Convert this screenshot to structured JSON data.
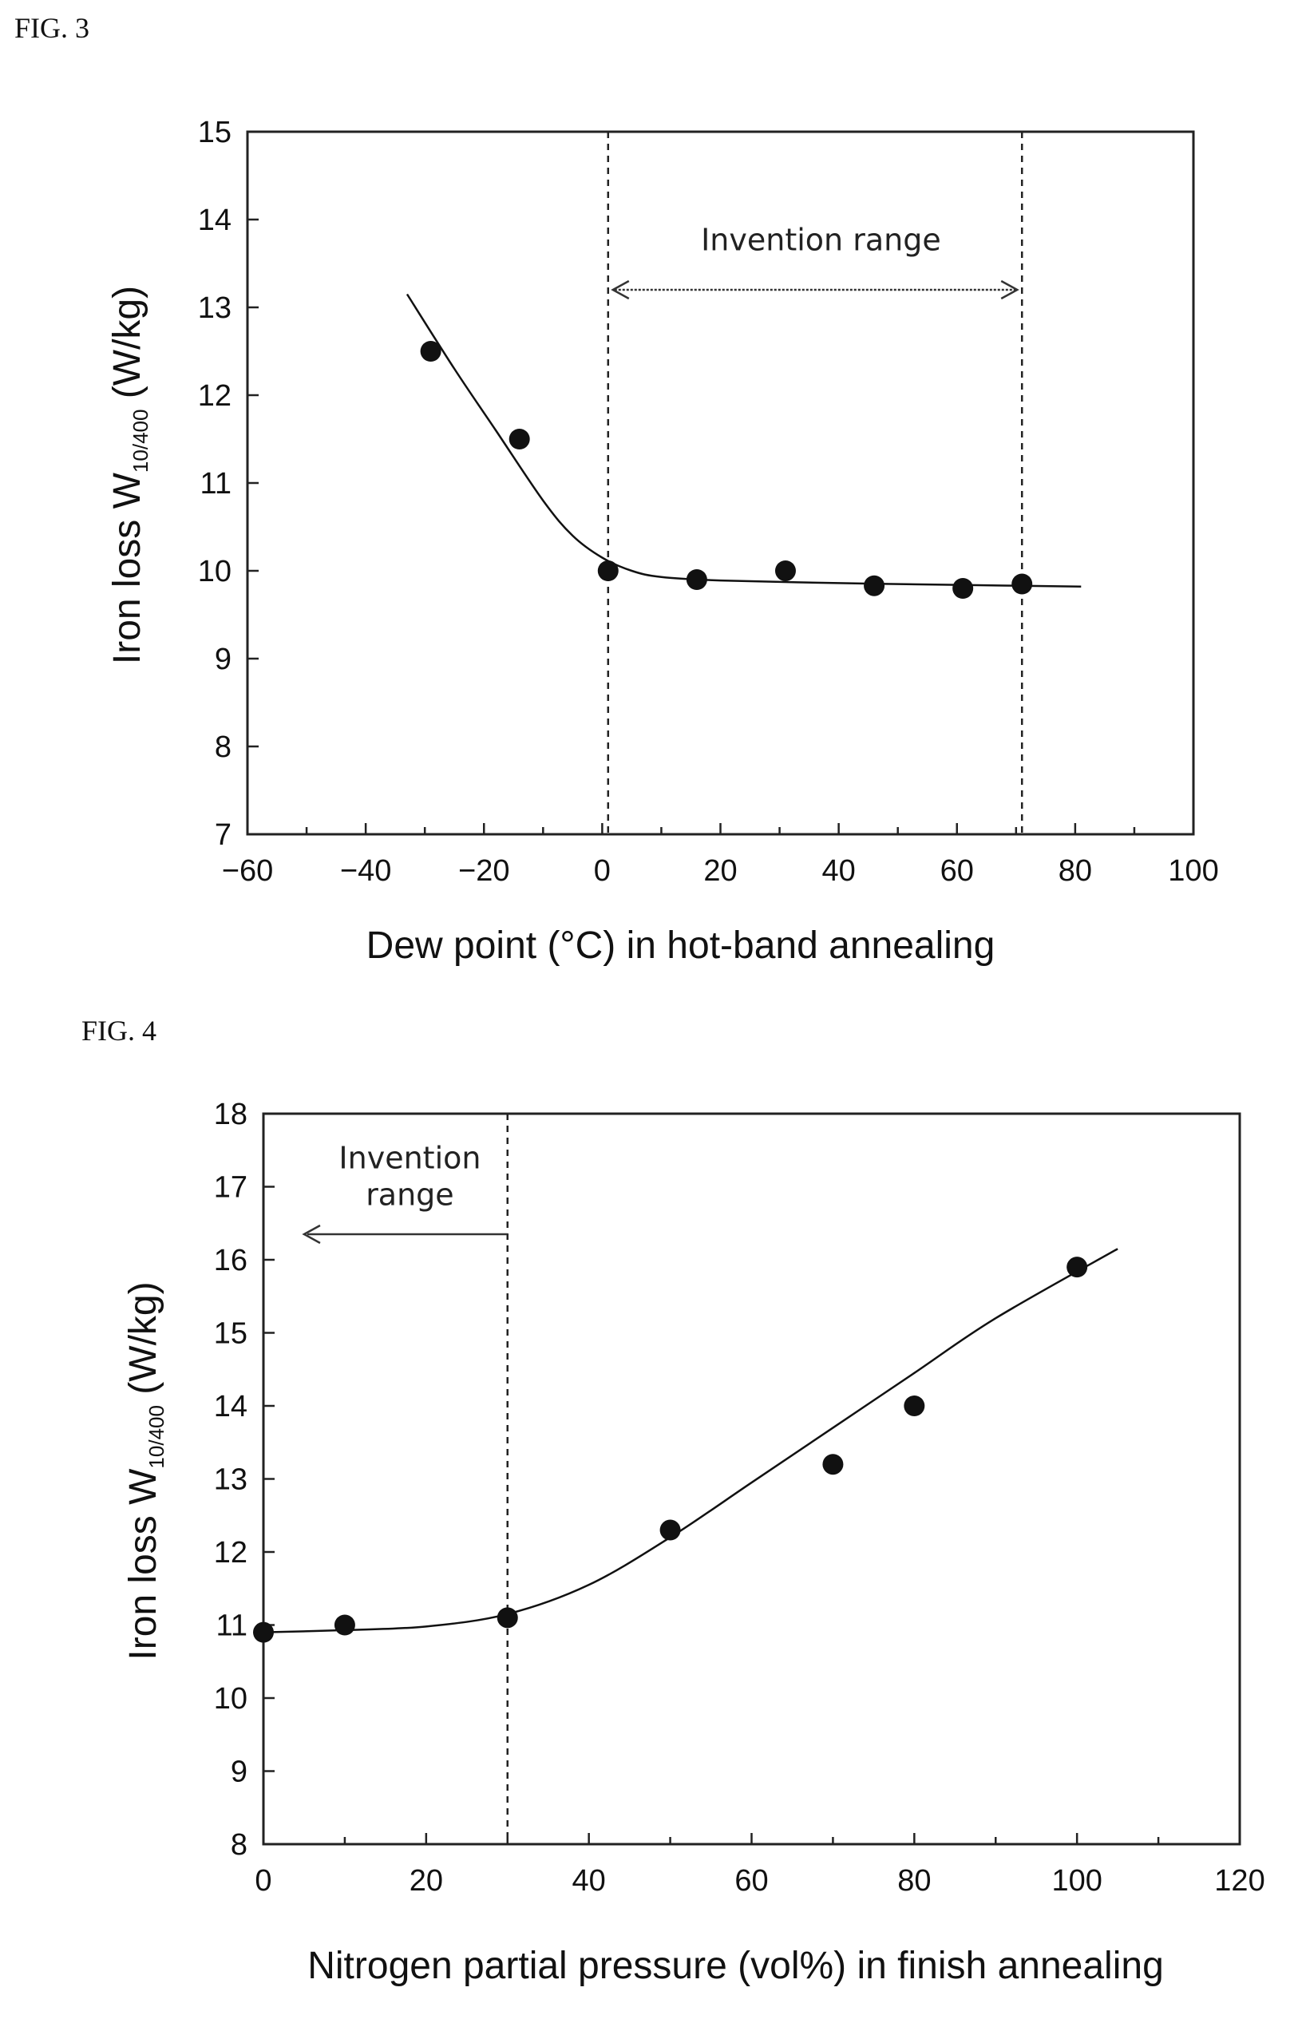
{
  "figures": {
    "fig3_label": "FIG. 3",
    "fig4_label": "FIG. 4"
  },
  "chart_data": [
    {
      "id": "fig3",
      "type": "scatter",
      "xlabel": "Dew point (°C) in hot-band annealing",
      "ylabel_main": "Iron loss W",
      "ylabel_sub": "10/400",
      "ylabel_unit": "(W/kg)",
      "xlim": [
        -60,
        100
      ],
      "ylim": [
        7,
        15
      ],
      "xticks": [
        -60,
        -40,
        -20,
        0,
        20,
        40,
        60,
        80,
        100
      ],
      "xtick_labels": [
        "−60",
        "−40",
        "−20",
        "0",
        "20",
        "40",
        "60",
        "80",
        "100"
      ],
      "yticks": [
        7,
        8,
        9,
        10,
        11,
        12,
        13,
        14,
        15
      ],
      "points": [
        {
          "x": -29,
          "y": 12.5
        },
        {
          "x": -14,
          "y": 11.5
        },
        {
          "x": 1,
          "y": 10.0
        },
        {
          "x": 16,
          "y": 9.9
        },
        {
          "x": 31,
          "y": 10.0
        },
        {
          "x": 46,
          "y": 9.83
        },
        {
          "x": 61,
          "y": 9.8
        },
        {
          "x": 71,
          "y": 9.85
        }
      ],
      "fit_curve": [
        {
          "x": -33,
          "y": 13.15
        },
        {
          "x": -25,
          "y": 12.3
        },
        {
          "x": -18,
          "y": 11.6
        },
        {
          "x": -10,
          "y": 10.8
        },
        {
          "x": -5,
          "y": 10.4
        },
        {
          "x": 0,
          "y": 10.15
        },
        {
          "x": 5,
          "y": 10.0
        },
        {
          "x": 10,
          "y": 9.93
        },
        {
          "x": 20,
          "y": 9.89
        },
        {
          "x": 40,
          "y": 9.86
        },
        {
          "x": 60,
          "y": 9.84
        },
        {
          "x": 81,
          "y": 9.82
        }
      ],
      "vlines": [
        1,
        71
      ],
      "annotation": {
        "text_lines": [
          "Invention range"
        ],
        "arrow": "double",
        "from_x": 1,
        "to_x": 71,
        "arrow_y": 13.2,
        "text_x": 37,
        "text_y": 13.65
      }
    },
    {
      "id": "fig4",
      "type": "scatter",
      "xlabel": "Nitrogen partial pressure (vol%) in finish annealing",
      "ylabel_main": "Iron loss W",
      "ylabel_sub": "10/400",
      "ylabel_unit": "(W/kg)",
      "xlim": [
        0,
        120
      ],
      "ylim": [
        8,
        18
      ],
      "xticks": [
        0,
        20,
        40,
        60,
        80,
        100,
        120
      ],
      "xtick_labels": [
        "0",
        "20",
        "40",
        "60",
        "80",
        "100",
        "120"
      ],
      "yticks": [
        8,
        9,
        10,
        11,
        12,
        13,
        14,
        15,
        16,
        17,
        18
      ],
      "points": [
        {
          "x": 0,
          "y": 10.9
        },
        {
          "x": 10,
          "y": 11.0
        },
        {
          "x": 30,
          "y": 11.1
        },
        {
          "x": 50,
          "y": 12.3
        },
        {
          "x": 70,
          "y": 13.2
        },
        {
          "x": 80,
          "y": 14.0
        },
        {
          "x": 100,
          "y": 15.9
        }
      ],
      "fit_curve": [
        {
          "x": 0,
          "y": 10.9
        },
        {
          "x": 10,
          "y": 10.93
        },
        {
          "x": 20,
          "y": 10.98
        },
        {
          "x": 30,
          "y": 11.15
        },
        {
          "x": 40,
          "y": 11.55
        },
        {
          "x": 50,
          "y": 12.2
        },
        {
          "x": 60,
          "y": 12.95
        },
        {
          "x": 70,
          "y": 13.7
        },
        {
          "x": 80,
          "y": 14.45
        },
        {
          "x": 90,
          "y": 15.2
        },
        {
          "x": 105,
          "y": 16.15
        }
      ],
      "vlines": [
        30
      ],
      "annotation": {
        "text_lines": [
          "Invention",
          "range"
        ],
        "arrow": "left",
        "from_x": 30,
        "to_x": 5,
        "arrow_y": 16.35,
        "text_x": 18,
        "text_y": 17.25
      }
    }
  ]
}
